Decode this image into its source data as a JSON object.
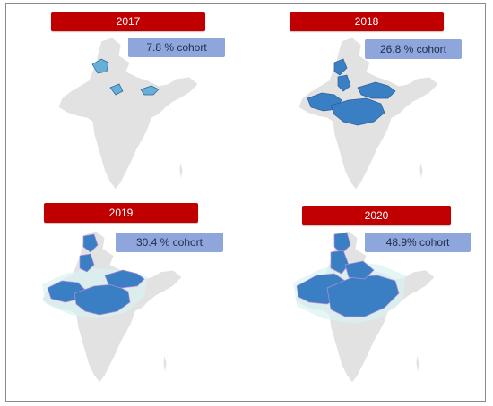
{
  "figure": {
    "panels": [
      {
        "year": "2017",
        "cohort": "7.8 % cohort",
        "coverage_level": 1
      },
      {
        "year": "2018",
        "cohort": "26.8 % cohort",
        "coverage_level": 2
      },
      {
        "year": "2019",
        "cohort": "30.4 % cohort",
        "coverage_level": 3
      },
      {
        "year": "2020",
        "cohort": "48.9% cohort",
        "coverage_level": 4
      }
    ],
    "colors": {
      "banner": "#c00000",
      "badge": "#8ea6db",
      "land": "#e2e2e2",
      "border": "#ffffff",
      "covered": "#3a7fc4",
      "covered_light": "#66b0d8",
      "halo": "#d8f2f2"
    }
  }
}
